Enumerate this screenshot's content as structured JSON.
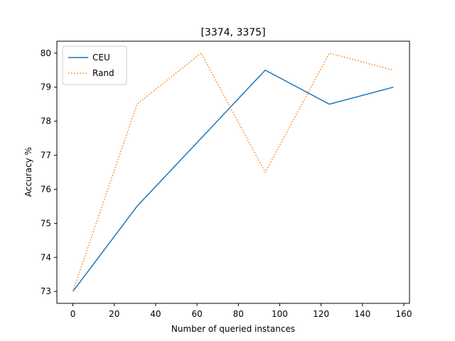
{
  "chart_data": {
    "type": "line",
    "title": "[3374, 3375]",
    "xlabel": "Number of queried instances",
    "ylabel": "Accuracy %",
    "xlim": [
      -7.75,
      162.75
    ],
    "ylim": [
      72.65,
      80.35
    ],
    "xticks": [
      0,
      20,
      40,
      60,
      80,
      100,
      120,
      140,
      160
    ],
    "yticks": [
      73,
      74,
      75,
      76,
      77,
      78,
      79,
      80
    ],
    "grid": false,
    "legend_position": "top-left",
    "x": [
      0,
      31,
      62,
      93,
      124,
      155
    ],
    "series": [
      {
        "name": " CEU",
        "color": "#1f77b4",
        "style": "solid",
        "values": [
          73.0,
          75.5,
          77.5,
          79.5,
          78.5,
          79.0
        ]
      },
      {
        "name": " Rand",
        "color": "#ff7f0e",
        "style": "dotted",
        "values": [
          73.0,
          78.5,
          80.0,
          76.5,
          80.0,
          79.5
        ]
      }
    ]
  }
}
